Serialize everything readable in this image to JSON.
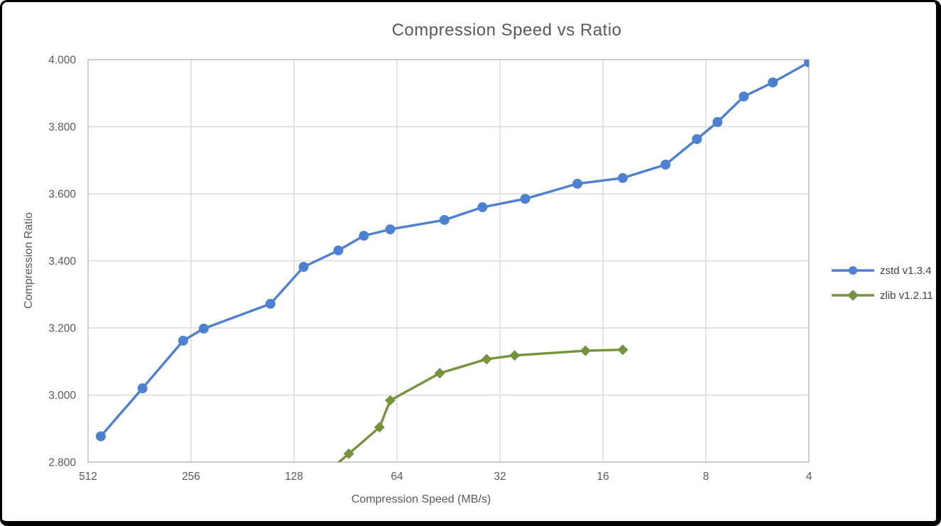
{
  "figure": {
    "title": "Compression Speed vs Ratio",
    "x_axis_title": "Compression Speed (MB/s)",
    "y_axis_title": "Compression Ratio"
  },
  "style": {
    "title_color": "#595959",
    "tick_label_color": "#595959",
    "legend_text_color": "#404040",
    "gridline_color": "#d9d9d9",
    "plot_border_color": "#bfbfbf",
    "zstd_color": "#4e80d0",
    "zlib_color": "#76923c"
  },
  "legend": {
    "position": "right",
    "items": [
      {
        "label": "zstd v1.3.4",
        "marker": "circle",
        "color": "#4e80d0"
      },
      {
        "label": "zlib v1.2.11",
        "marker": "diamond",
        "color": "#76923c"
      }
    ]
  },
  "chart_data": {
    "type": "line",
    "title": "Compression Speed vs Ratio",
    "xlabel": "Compression Speed (MB/s)",
    "ylabel": "Compression Ratio",
    "x_scale": "log2",
    "x_reversed": true,
    "grid": true,
    "legend_position": "right",
    "x_ticks": [
      512,
      256,
      128,
      64,
      32,
      16,
      8,
      4
    ],
    "y_ticks": [
      2.8,
      3.0,
      3.2,
      3.4,
      3.6,
      3.8,
      4.0
    ],
    "y_tick_decimals": 3,
    "xlim": [
      512,
      4
    ],
    "ylim": [
      2.8,
      4.0
    ],
    "series": [
      {
        "name": "zstd v1.3.4",
        "color": "#4e80d0",
        "marker": "circle",
        "points": [
          [
            470,
            2.877
          ],
          [
            355,
            3.02
          ],
          [
            270,
            3.162
          ],
          [
            235,
            3.198
          ],
          [
            150,
            3.272
          ],
          [
            120,
            3.382
          ],
          [
            95,
            3.431
          ],
          [
            80,
            3.475
          ],
          [
            67,
            3.494
          ],
          [
            46.5,
            3.522
          ],
          [
            36,
            3.56
          ],
          [
            27,
            3.585
          ],
          [
            19,
            3.63
          ],
          [
            14,
            3.647
          ],
          [
            10.5,
            3.687
          ],
          [
            8.5,
            3.763
          ],
          [
            7.4,
            3.814
          ],
          [
            6.2,
            3.89
          ],
          [
            5.1,
            3.932
          ],
          [
            4,
            3.992
          ]
        ]
      },
      {
        "name": "zlib v1.2.11",
        "color": "#76923c",
        "marker": "diamond",
        "points": [
          [
            110,
            2.743
          ],
          [
            88.5,
            2.825
          ],
          [
            72,
            2.904
          ],
          [
            67,
            2.984
          ],
          [
            48,
            3.065
          ],
          [
            35,
            3.107
          ],
          [
            29,
            3.118
          ],
          [
            18,
            3.132
          ],
          [
            14,
            3.135
          ]
        ]
      }
    ]
  }
}
